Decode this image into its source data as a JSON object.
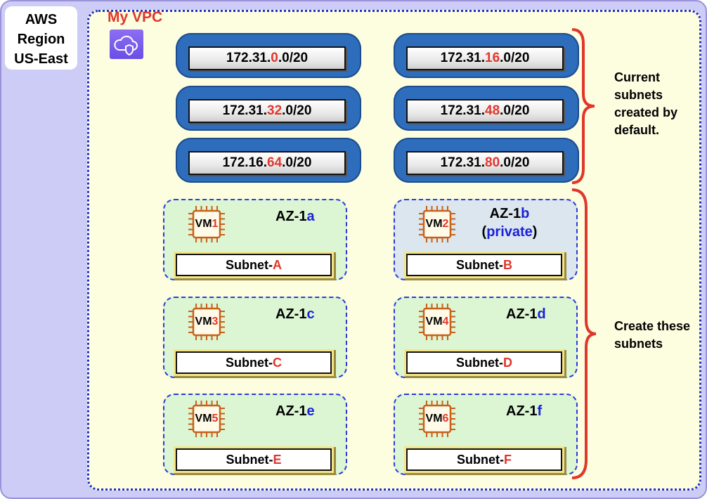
{
  "region": {
    "line1": "AWS",
    "line2": "Region",
    "line3": "US-East"
  },
  "vpc": {
    "title": "My VPC",
    "icon": "vpc-cloud-shield-icon"
  },
  "current_subnets": [
    {
      "prefix": "172.31.",
      "octet": "0",
      "suffix": ".0/20"
    },
    {
      "prefix": "172.31.",
      "octet": "16",
      "suffix": ".0/20"
    },
    {
      "prefix": "172.31.",
      "octet": "32",
      "suffix": ".0/20"
    },
    {
      "prefix": "172.31.",
      "octet": "48",
      "suffix": ".0/20"
    },
    {
      "prefix": "172.16.",
      "octet": "64",
      "suffix": ".0/20"
    },
    {
      "prefix": "172.31.",
      "octet": "80",
      "suffix": ".0/20"
    }
  ],
  "zones": [
    {
      "az_prefix": "AZ-1",
      "az_letter": "a",
      "vm_prefix": "VM",
      "vm_num": "1",
      "subnet_prefix": "Subnet-",
      "subnet_letter": "A",
      "private_label": ""
    },
    {
      "az_prefix": "AZ-1",
      "az_letter": "b",
      "vm_prefix": "VM",
      "vm_num": "2",
      "subnet_prefix": "Subnet-",
      "subnet_letter": "B",
      "private_label": "private"
    },
    {
      "az_prefix": "AZ-1",
      "az_letter": "c",
      "vm_prefix": "VM",
      "vm_num": "3",
      "subnet_prefix": "Subnet-",
      "subnet_letter": "C",
      "private_label": ""
    },
    {
      "az_prefix": "AZ-1",
      "az_letter": "d",
      "vm_prefix": "VM",
      "vm_num": "4",
      "subnet_prefix": "Subnet-",
      "subnet_letter": "D",
      "private_label": ""
    },
    {
      "az_prefix": "AZ-1",
      "az_letter": "e",
      "vm_prefix": "VM",
      "vm_num": "5",
      "subnet_prefix": "Subnet-",
      "subnet_letter": "E",
      "private_label": ""
    },
    {
      "az_prefix": "AZ-1",
      "az_letter": "f",
      "vm_prefix": "VM",
      "vm_num": "6",
      "subnet_prefix": "Subnet-",
      "subnet_letter": "F",
      "private_label": ""
    }
  ],
  "notes": {
    "current": [
      "Current",
      "subnets",
      "created by",
      "default."
    ],
    "create": [
      "Create these",
      "subnets"
    ]
  },
  "colors": {
    "accent_red": "#e0372c",
    "accent_blue": "#1a22d6",
    "pill_blue": "#2e6dbc",
    "vpc_border": "#1f2fc8",
    "chip_orange": "#c8601a"
  }
}
